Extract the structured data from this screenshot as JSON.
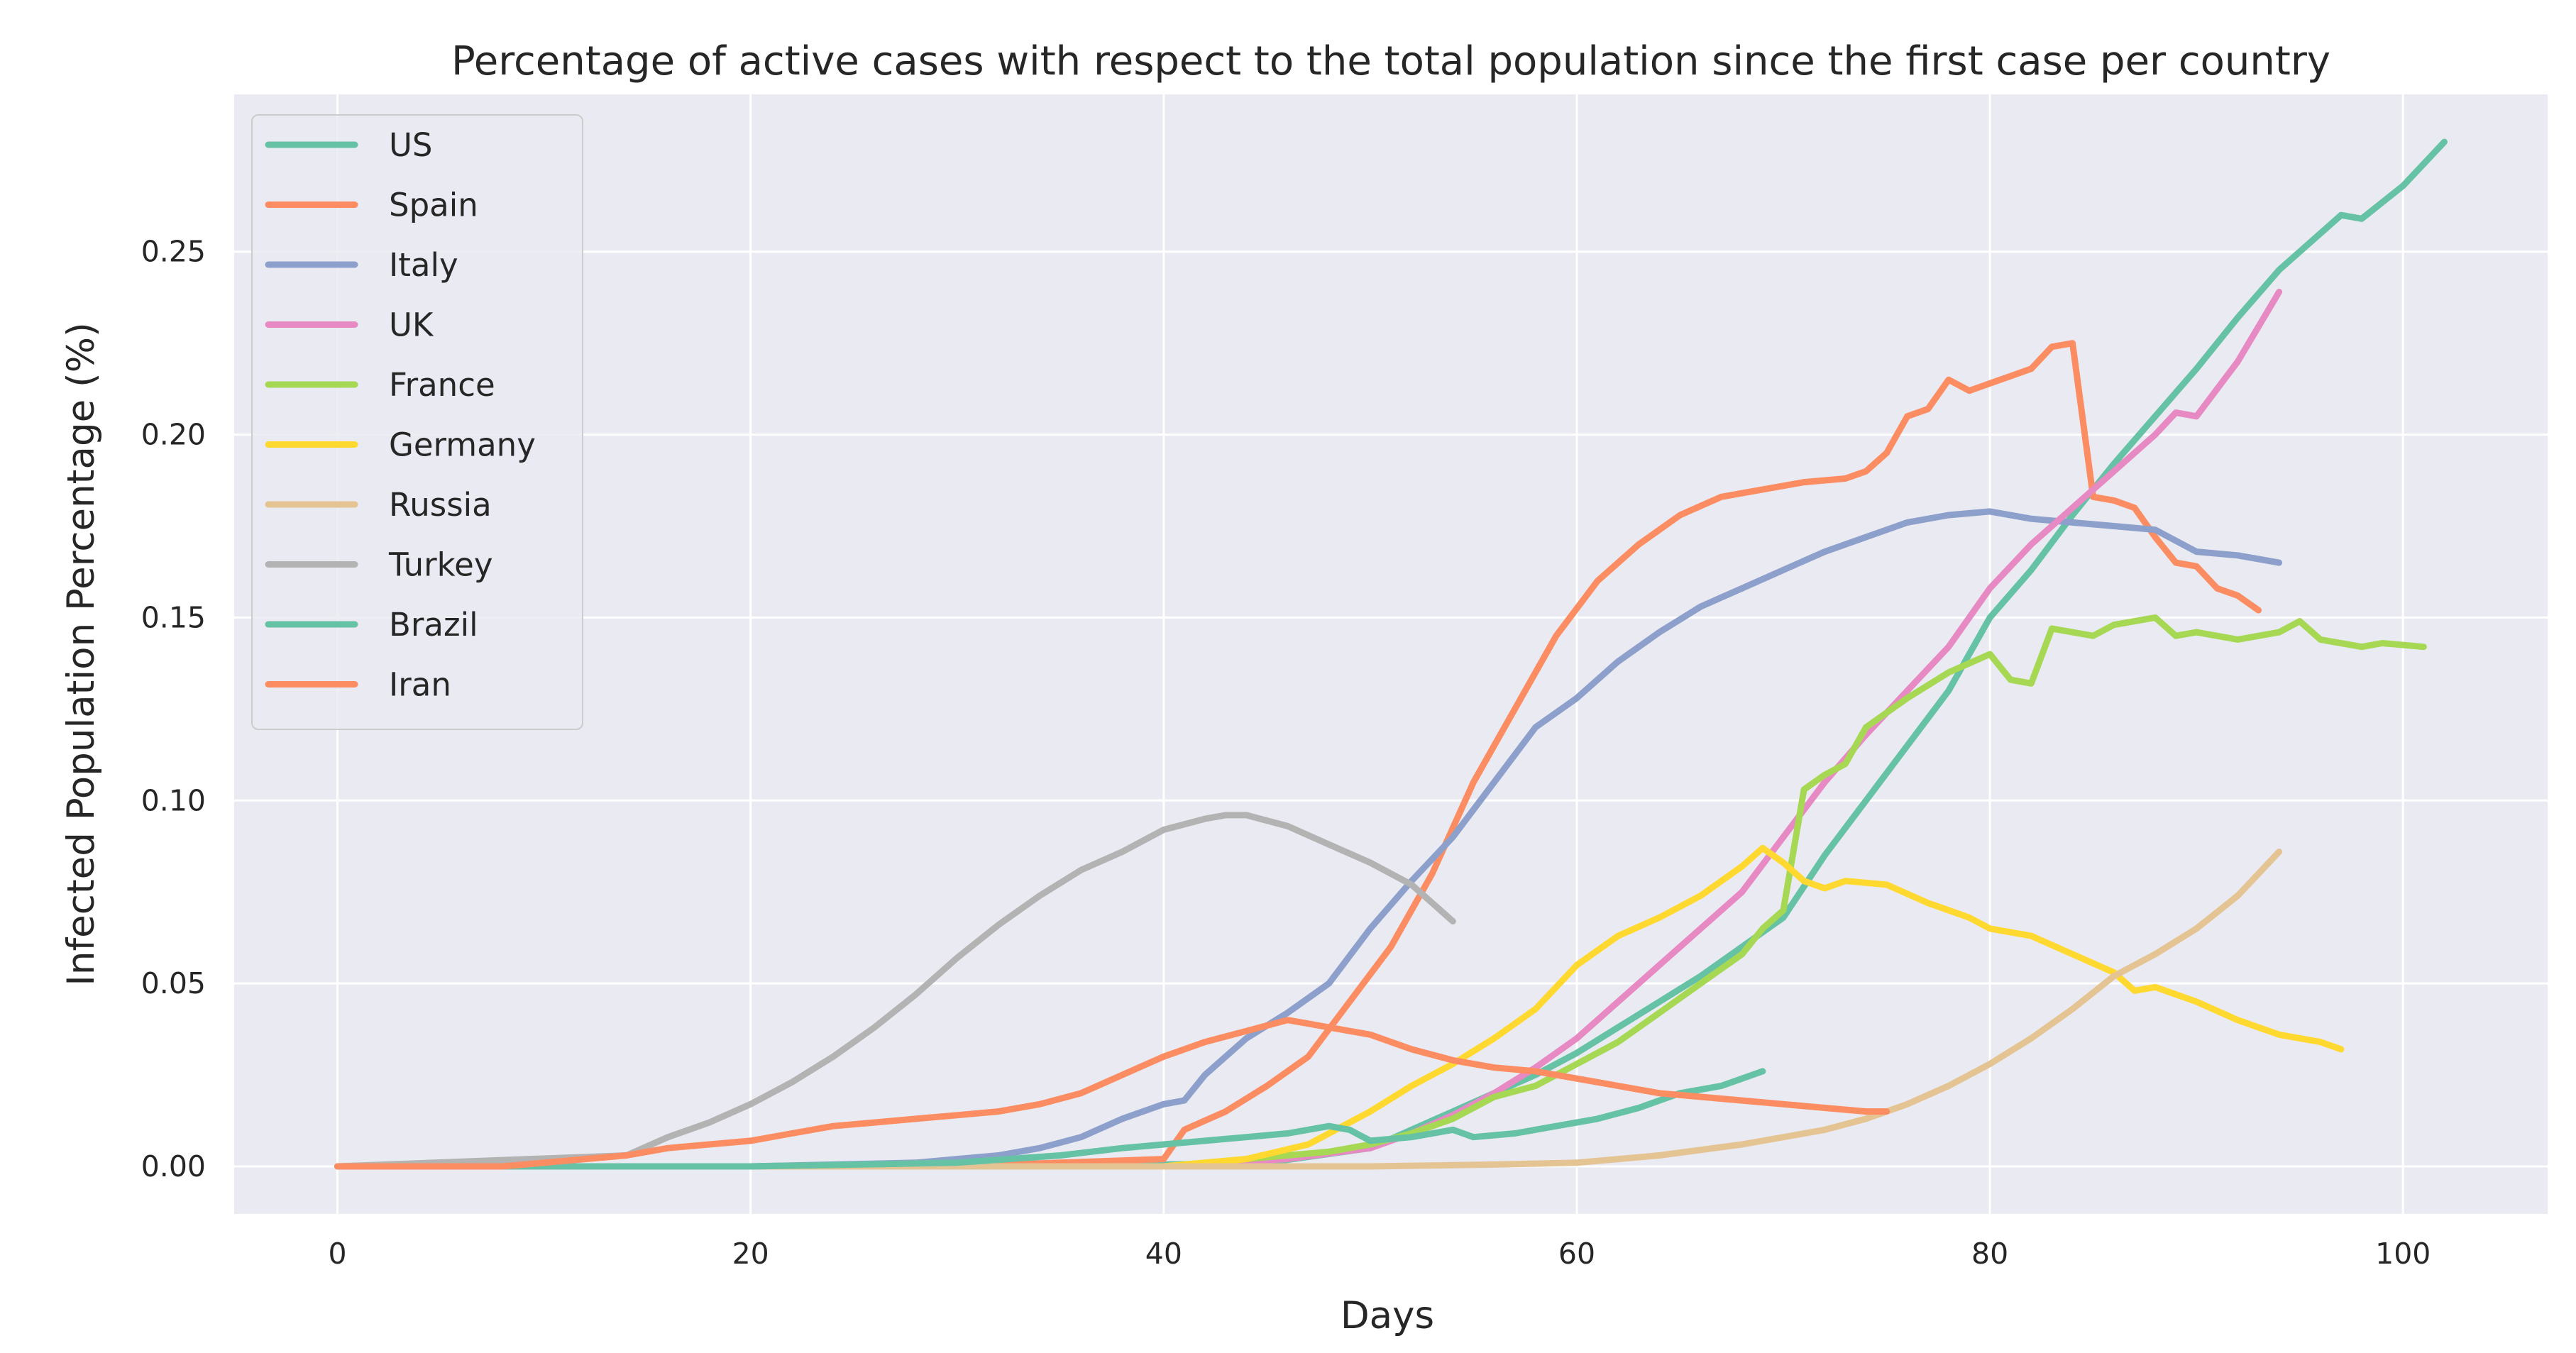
{
  "chart_data": {
    "type": "line",
    "title": "Percentage of active cases with respect to the total population since the first case per country",
    "xlabel": "Days",
    "ylabel": "Infected Population Percentage (%)",
    "xlim": [
      -5,
      107
    ],
    "ylim": [
      -0.013,
      0.293
    ],
    "x_ticks": [
      0,
      20,
      40,
      60,
      80,
      100
    ],
    "x_tick_labels": [
      "0",
      "20",
      "40",
      "60",
      "80",
      "100"
    ],
    "y_ticks": [
      0,
      0.05,
      0.1,
      0.15,
      0.2,
      0.25
    ],
    "y_tick_labels": [
      "0.00",
      "0.05",
      "0.10",
      "0.15",
      "0.20",
      "0.25"
    ],
    "grid": true,
    "legend_position": "top-left",
    "series": [
      {
        "name": "US",
        "color": "#66c2a5",
        "points": [
          [
            0,
            0
          ],
          [
            30,
            0
          ],
          [
            40,
            0.0005
          ],
          [
            45,
            0.001
          ],
          [
            50,
            0.005
          ],
          [
            52,
            0.01
          ],
          [
            54,
            0.015
          ],
          [
            56,
            0.02
          ],
          [
            58,
            0.025
          ],
          [
            60,
            0.031
          ],
          [
            62,
            0.038
          ],
          [
            64,
            0.045
          ],
          [
            66,
            0.052
          ],
          [
            68,
            0.06
          ],
          [
            70,
            0.068
          ],
          [
            72,
            0.085
          ],
          [
            74,
            0.1
          ],
          [
            76,
            0.115
          ],
          [
            78,
            0.13
          ],
          [
            80,
            0.15
          ],
          [
            82,
            0.163
          ],
          [
            84,
            0.178
          ],
          [
            86,
            0.192
          ],
          [
            88,
            0.205
          ],
          [
            90,
            0.218
          ],
          [
            92,
            0.232
          ],
          [
            94,
            0.245
          ],
          [
            96,
            0.255
          ],
          [
            97,
            0.26
          ],
          [
            98,
            0.259
          ],
          [
            100,
            0.268
          ],
          [
            102,
            0.28
          ]
        ]
      },
      {
        "name": "Spain",
        "color": "#fc8d62",
        "points": [
          [
            0,
            0
          ],
          [
            30,
            0
          ],
          [
            35,
            0.001
          ],
          [
            40,
            0.002
          ],
          [
            41,
            0.01
          ],
          [
            43,
            0.015
          ],
          [
            45,
            0.022
          ],
          [
            47,
            0.03
          ],
          [
            49,
            0.045
          ],
          [
            51,
            0.06
          ],
          [
            53,
            0.08
          ],
          [
            55,
            0.105
          ],
          [
            57,
            0.125
          ],
          [
            59,
            0.145
          ],
          [
            61,
            0.16
          ],
          [
            63,
            0.17
          ],
          [
            65,
            0.178
          ],
          [
            67,
            0.183
          ],
          [
            69,
            0.185
          ],
          [
            71,
            0.187
          ],
          [
            73,
            0.188
          ],
          [
            74,
            0.19
          ],
          [
            75,
            0.195
          ],
          [
            76,
            0.205
          ],
          [
            77,
            0.207
          ],
          [
            78,
            0.215
          ],
          [
            79,
            0.212
          ],
          [
            80,
            0.214
          ],
          [
            81,
            0.216
          ],
          [
            82,
            0.218
          ],
          [
            83,
            0.224
          ],
          [
            84,
            0.225
          ],
          [
            85,
            0.183
          ],
          [
            86,
            0.182
          ],
          [
            87,
            0.18
          ],
          [
            88,
            0.172
          ],
          [
            89,
            0.165
          ],
          [
            90,
            0.164
          ],
          [
            91,
            0.158
          ],
          [
            92,
            0.156
          ],
          [
            93,
            0.152
          ]
        ]
      },
      {
        "name": "Italy",
        "color": "#8da0cb",
        "points": [
          [
            0,
            0
          ],
          [
            20,
            0
          ],
          [
            28,
            0.001
          ],
          [
            30,
            0.002
          ],
          [
            32,
            0.003
          ],
          [
            34,
            0.005
          ],
          [
            36,
            0.008
          ],
          [
            38,
            0.013
          ],
          [
            40,
            0.017
          ],
          [
            41,
            0.018
          ],
          [
            42,
            0.025
          ],
          [
            44,
            0.035
          ],
          [
            46,
            0.042
          ],
          [
            48,
            0.05
          ],
          [
            50,
            0.065
          ],
          [
            52,
            0.078
          ],
          [
            54,
            0.09
          ],
          [
            56,
            0.105
          ],
          [
            58,
            0.12
          ],
          [
            60,
            0.128
          ],
          [
            62,
            0.138
          ],
          [
            64,
            0.146
          ],
          [
            66,
            0.153
          ],
          [
            68,
            0.158
          ],
          [
            70,
            0.163
          ],
          [
            72,
            0.168
          ],
          [
            74,
            0.172
          ],
          [
            76,
            0.176
          ],
          [
            78,
            0.178
          ],
          [
            80,
            0.179
          ],
          [
            82,
            0.177
          ],
          [
            84,
            0.176
          ],
          [
            86,
            0.175
          ],
          [
            88,
            0.174
          ],
          [
            90,
            0.168
          ],
          [
            92,
            0.167
          ],
          [
            94,
            0.165
          ]
        ]
      },
      {
        "name": "UK",
        "color": "#e78ac3",
        "points": [
          [
            0,
            0
          ],
          [
            40,
            0
          ],
          [
            46,
            0.002
          ],
          [
            50,
            0.005
          ],
          [
            52,
            0.009
          ],
          [
            54,
            0.014
          ],
          [
            56,
            0.02
          ],
          [
            58,
            0.027
          ],
          [
            60,
            0.035
          ],
          [
            62,
            0.045
          ],
          [
            64,
            0.055
          ],
          [
            66,
            0.065
          ],
          [
            68,
            0.075
          ],
          [
            70,
            0.09
          ],
          [
            72,
            0.105
          ],
          [
            74,
            0.118
          ],
          [
            76,
            0.13
          ],
          [
            78,
            0.142
          ],
          [
            80,
            0.158
          ],
          [
            82,
            0.17
          ],
          [
            84,
            0.18
          ],
          [
            86,
            0.19
          ],
          [
            88,
            0.2
          ],
          [
            89,
            0.206
          ],
          [
            90,
            0.205
          ],
          [
            92,
            0.22
          ],
          [
            94,
            0.239
          ]
        ]
      },
      {
        "name": "France",
        "color": "#a6d854",
        "points": [
          [
            0,
            0
          ],
          [
            40,
            0
          ],
          [
            46,
            0.003
          ],
          [
            48,
            0.004
          ],
          [
            50,
            0.006
          ],
          [
            52,
            0.009
          ],
          [
            54,
            0.013
          ],
          [
            56,
            0.019
          ],
          [
            58,
            0.022
          ],
          [
            60,
            0.028
          ],
          [
            62,
            0.034
          ],
          [
            64,
            0.042
          ],
          [
            66,
            0.05
          ],
          [
            68,
            0.058
          ],
          [
            69,
            0.065
          ],
          [
            70,
            0.07
          ],
          [
            71,
            0.103
          ],
          [
            72,
            0.107
          ],
          [
            73,
            0.11
          ],
          [
            74,
            0.12
          ],
          [
            76,
            0.128
          ],
          [
            78,
            0.135
          ],
          [
            80,
            0.14
          ],
          [
            81,
            0.133
          ],
          [
            82,
            0.132
          ],
          [
            83,
            0.147
          ],
          [
            85,
            0.145
          ],
          [
            86,
            0.148
          ],
          [
            88,
            0.15
          ],
          [
            89,
            0.145
          ],
          [
            90,
            0.146
          ],
          [
            92,
            0.144
          ],
          [
            94,
            0.146
          ],
          [
            95,
            0.149
          ],
          [
            96,
            0.144
          ],
          [
            98,
            0.142
          ],
          [
            99,
            0.143
          ],
          [
            101,
            0.142
          ]
        ]
      },
      {
        "name": "Germany",
        "color": "#ffd92f",
        "points": [
          [
            0,
            0
          ],
          [
            40,
            0
          ],
          [
            44,
            0.002
          ],
          [
            47,
            0.006
          ],
          [
            50,
            0.015
          ],
          [
            52,
            0.022
          ],
          [
            54,
            0.028
          ],
          [
            56,
            0.035
          ],
          [
            58,
            0.043
          ],
          [
            60,
            0.055
          ],
          [
            62,
            0.063
          ],
          [
            64,
            0.068
          ],
          [
            66,
            0.074
          ],
          [
            68,
            0.082
          ],
          [
            69,
            0.087
          ],
          [
            70,
            0.083
          ],
          [
            71,
            0.078
          ],
          [
            72,
            0.076
          ],
          [
            73,
            0.078
          ],
          [
            75,
            0.077
          ],
          [
            77,
            0.072
          ],
          [
            79,
            0.068
          ],
          [
            80,
            0.065
          ],
          [
            82,
            0.063
          ],
          [
            84,
            0.058
          ],
          [
            86,
            0.053
          ],
          [
            87,
            0.048
          ],
          [
            88,
            0.049
          ],
          [
            90,
            0.045
          ],
          [
            92,
            0.04
          ],
          [
            94,
            0.036
          ],
          [
            96,
            0.034
          ],
          [
            97,
            0.032
          ]
        ]
      },
      {
        "name": "Russia",
        "color": "#e5c494",
        "points": [
          [
            0,
            0
          ],
          [
            50,
            0
          ],
          [
            56,
            0.0005
          ],
          [
            60,
            0.001
          ],
          [
            64,
            0.003
          ],
          [
            68,
            0.006
          ],
          [
            72,
            0.01
          ],
          [
            74,
            0.013
          ],
          [
            76,
            0.017
          ],
          [
            78,
            0.022
          ],
          [
            80,
            0.028
          ],
          [
            82,
            0.035
          ],
          [
            84,
            0.043
          ],
          [
            86,
            0.052
          ],
          [
            88,
            0.058
          ],
          [
            90,
            0.065
          ],
          [
            92,
            0.074
          ],
          [
            94,
            0.086
          ]
        ]
      },
      {
        "name": "Turkey",
        "color": "#b3b3b3",
        "points": [
          [
            0,
            0
          ],
          [
            14,
            0.003
          ],
          [
            16,
            0.008
          ],
          [
            18,
            0.012
          ],
          [
            20,
            0.017
          ],
          [
            22,
            0.023
          ],
          [
            24,
            0.03
          ],
          [
            26,
            0.038
          ],
          [
            28,
            0.047
          ],
          [
            30,
            0.057
          ],
          [
            32,
            0.066
          ],
          [
            34,
            0.074
          ],
          [
            36,
            0.081
          ],
          [
            38,
            0.086
          ],
          [
            40,
            0.092
          ],
          [
            42,
            0.095
          ],
          [
            43,
            0.096
          ],
          [
            44,
            0.096
          ],
          [
            46,
            0.093
          ],
          [
            48,
            0.088
          ],
          [
            50,
            0.083
          ],
          [
            52,
            0.077
          ],
          [
            54,
            0.067
          ]
        ]
      },
      {
        "name": "Brazil",
        "color": "#66c2a5",
        "points": [
          [
            0,
            0
          ],
          [
            20,
            0
          ],
          [
            30,
            0.001
          ],
          [
            35,
            0.003
          ],
          [
            38,
            0.005
          ],
          [
            40,
            0.006
          ],
          [
            42,
            0.007
          ],
          [
            44,
            0.008
          ],
          [
            46,
            0.009
          ],
          [
            48,
            0.011
          ],
          [
            49,
            0.01
          ],
          [
            50,
            0.007
          ],
          [
            52,
            0.008
          ],
          [
            54,
            0.01
          ],
          [
            55,
            0.008
          ],
          [
            57,
            0.009
          ],
          [
            59,
            0.011
          ],
          [
            61,
            0.013
          ],
          [
            63,
            0.016
          ],
          [
            65,
            0.02
          ],
          [
            67,
            0.022
          ],
          [
            69,
            0.026
          ]
        ]
      },
      {
        "name": "Iran",
        "color": "#fc8d62",
        "points": [
          [
            0,
            0
          ],
          [
            8,
            0
          ],
          [
            10,
            0.001
          ],
          [
            12,
            0.002
          ],
          [
            14,
            0.003
          ],
          [
            16,
            0.005
          ],
          [
            18,
            0.006
          ],
          [
            20,
            0.007
          ],
          [
            22,
            0.009
          ],
          [
            24,
            0.011
          ],
          [
            26,
            0.012
          ],
          [
            28,
            0.013
          ],
          [
            30,
            0.014
          ],
          [
            32,
            0.015
          ],
          [
            34,
            0.017
          ],
          [
            36,
            0.02
          ],
          [
            38,
            0.025
          ],
          [
            40,
            0.03
          ],
          [
            42,
            0.034
          ],
          [
            44,
            0.037
          ],
          [
            46,
            0.04
          ],
          [
            47,
            0.039
          ],
          [
            48,
            0.038
          ],
          [
            50,
            0.036
          ],
          [
            52,
            0.032
          ],
          [
            54,
            0.029
          ],
          [
            56,
            0.027
          ],
          [
            58,
            0.026
          ],
          [
            60,
            0.024
          ],
          [
            62,
            0.022
          ],
          [
            64,
            0.02
          ],
          [
            66,
            0.019
          ],
          [
            68,
            0.018
          ],
          [
            70,
            0.017
          ],
          [
            72,
            0.016
          ],
          [
            74,
            0.015
          ],
          [
            75,
            0.015
          ]
        ]
      }
    ]
  }
}
